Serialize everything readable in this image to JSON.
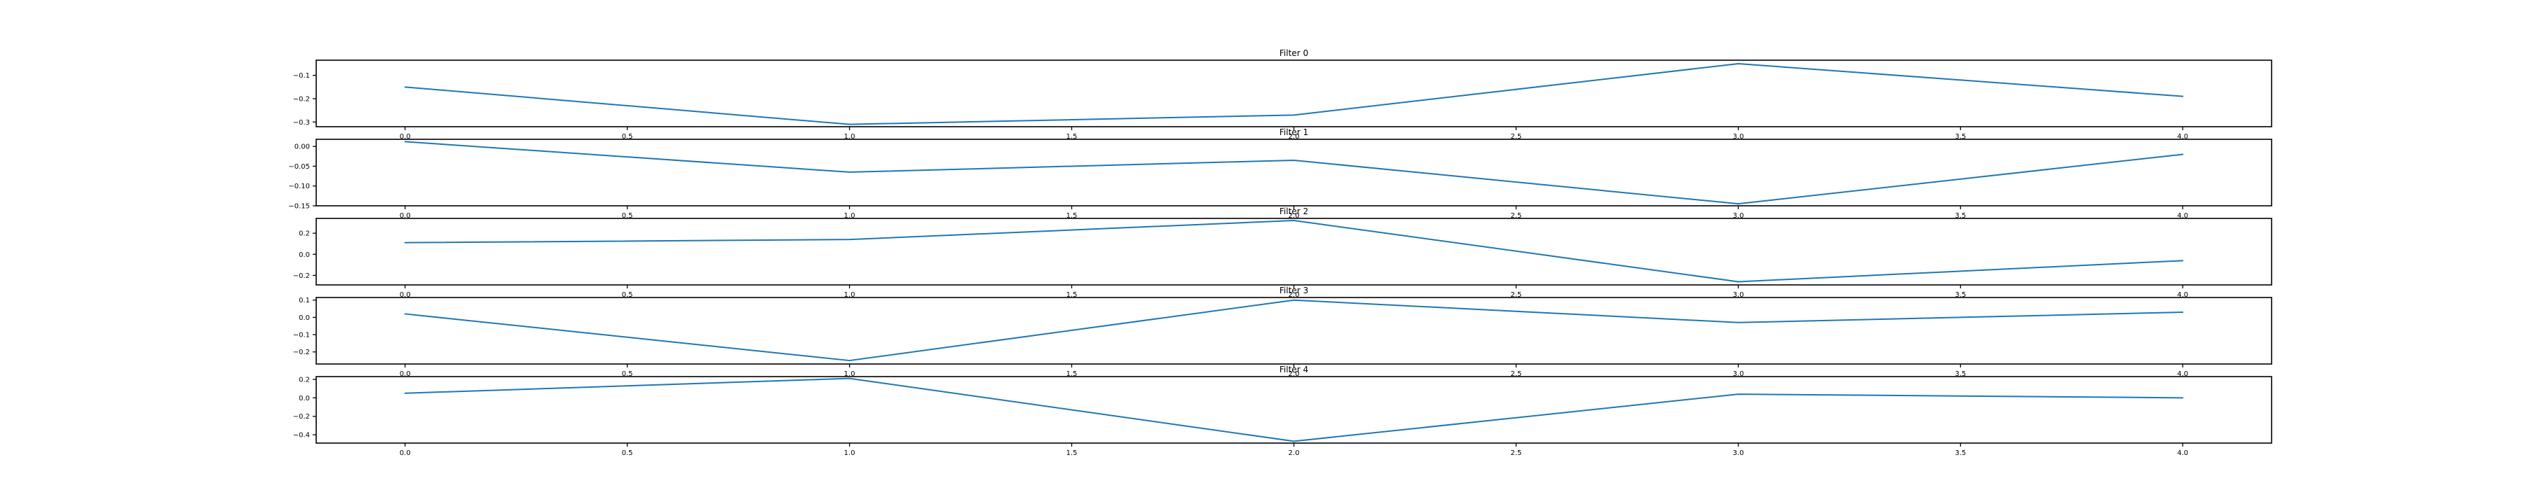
{
  "colors": {
    "series": "#1f77b4",
    "axes": "#000000",
    "background": "#ffffff"
  },
  "chart_data": [
    {
      "type": "line",
      "title": "Filter 0",
      "x": [
        0,
        1,
        2,
        3,
        4
      ],
      "xticks": [
        "0.0",
        "0.5",
        "1.0",
        "1.5",
        "2.0",
        "2.5",
        "3.0",
        "3.5",
        "4.0"
      ],
      "yticks": [
        "−0.1",
        "−0.2",
        "−0.3"
      ],
      "ytick_values": [
        -0.1,
        -0.2,
        -0.3
      ],
      "series": [
        {
          "values": [
            -0.15,
            -0.31,
            -0.27,
            -0.05,
            -0.19
          ]
        }
      ],
      "xlim": [
        -0.2,
        4.2
      ],
      "ylim": [
        -0.32,
        -0.035
      ],
      "grid": false
    },
    {
      "type": "line",
      "title": "Filter 1",
      "x": [
        0,
        1,
        2,
        3,
        4
      ],
      "xticks": [
        "0.0",
        "0.5",
        "1.0",
        "1.5",
        "2.0",
        "2.5",
        "3.0",
        "3.5",
        "4.0"
      ],
      "yticks": [
        "0.00",
        "−0.05",
        "−0.10",
        "−0.15"
      ],
      "ytick_values": [
        0.0,
        -0.05,
        -0.1,
        -0.15
      ],
      "series": [
        {
          "values": [
            0.012,
            -0.065,
            -0.035,
            -0.145,
            -0.02
          ]
        }
      ],
      "xlim": [
        -0.2,
        4.2
      ],
      "ylim": [
        -0.15,
        0.018
      ],
      "grid": false
    },
    {
      "type": "line",
      "title": "Filter 2",
      "x": [
        0,
        1,
        2,
        3,
        4
      ],
      "xticks": [
        "0.0",
        "0.5",
        "1.0",
        "1.5",
        "2.0",
        "2.5",
        "3.0",
        "3.5",
        "4.0"
      ],
      "yticks": [
        "0.2",
        "0.0",
        "−0.2"
      ],
      "ytick_values": [
        0.2,
        0.0,
        -0.2
      ],
      "series": [
        {
          "values": [
            0.11,
            0.14,
            0.32,
            -0.26,
            -0.06
          ]
        }
      ],
      "xlim": [
        -0.2,
        4.2
      ],
      "ylim": [
        -0.29,
        0.34
      ],
      "grid": false
    },
    {
      "type": "line",
      "title": "Filter 3",
      "x": [
        0,
        1,
        2,
        3,
        4
      ],
      "xticks": [
        "0.0",
        "0.5",
        "1.0",
        "1.5",
        "2.0",
        "2.5",
        "3.0",
        "3.5",
        "4.0"
      ],
      "yticks": [
        "0.1",
        "0.0",
        "−0.1",
        "−0.2"
      ],
      "ytick_values": [
        0.1,
        0.0,
        -0.1,
        -0.2
      ],
      "series": [
        {
          "values": [
            0.02,
            -0.25,
            0.1,
            -0.03,
            0.03
          ]
        }
      ],
      "xlim": [
        -0.2,
        4.2
      ],
      "ylim": [
        -0.27,
        0.115
      ],
      "grid": false
    },
    {
      "type": "line",
      "title": "Filter 4",
      "x": [
        0,
        1,
        2,
        3,
        4
      ],
      "xticks": [
        "0.0",
        "0.5",
        "1.0",
        "1.5",
        "2.0",
        "2.5",
        "3.0",
        "3.5",
        "4.0"
      ],
      "yticks": [
        "0.2",
        "0.0",
        "−0.2",
        "−0.4"
      ],
      "ytick_values": [
        0.2,
        0.0,
        -0.2,
        -0.4
      ],
      "series": [
        {
          "values": [
            0.05,
            0.21,
            -0.47,
            0.04,
            0.0
          ]
        }
      ],
      "xlim": [
        -0.2,
        4.2
      ],
      "ylim": [
        -0.49,
        0.23
      ],
      "grid": false
    }
  ]
}
